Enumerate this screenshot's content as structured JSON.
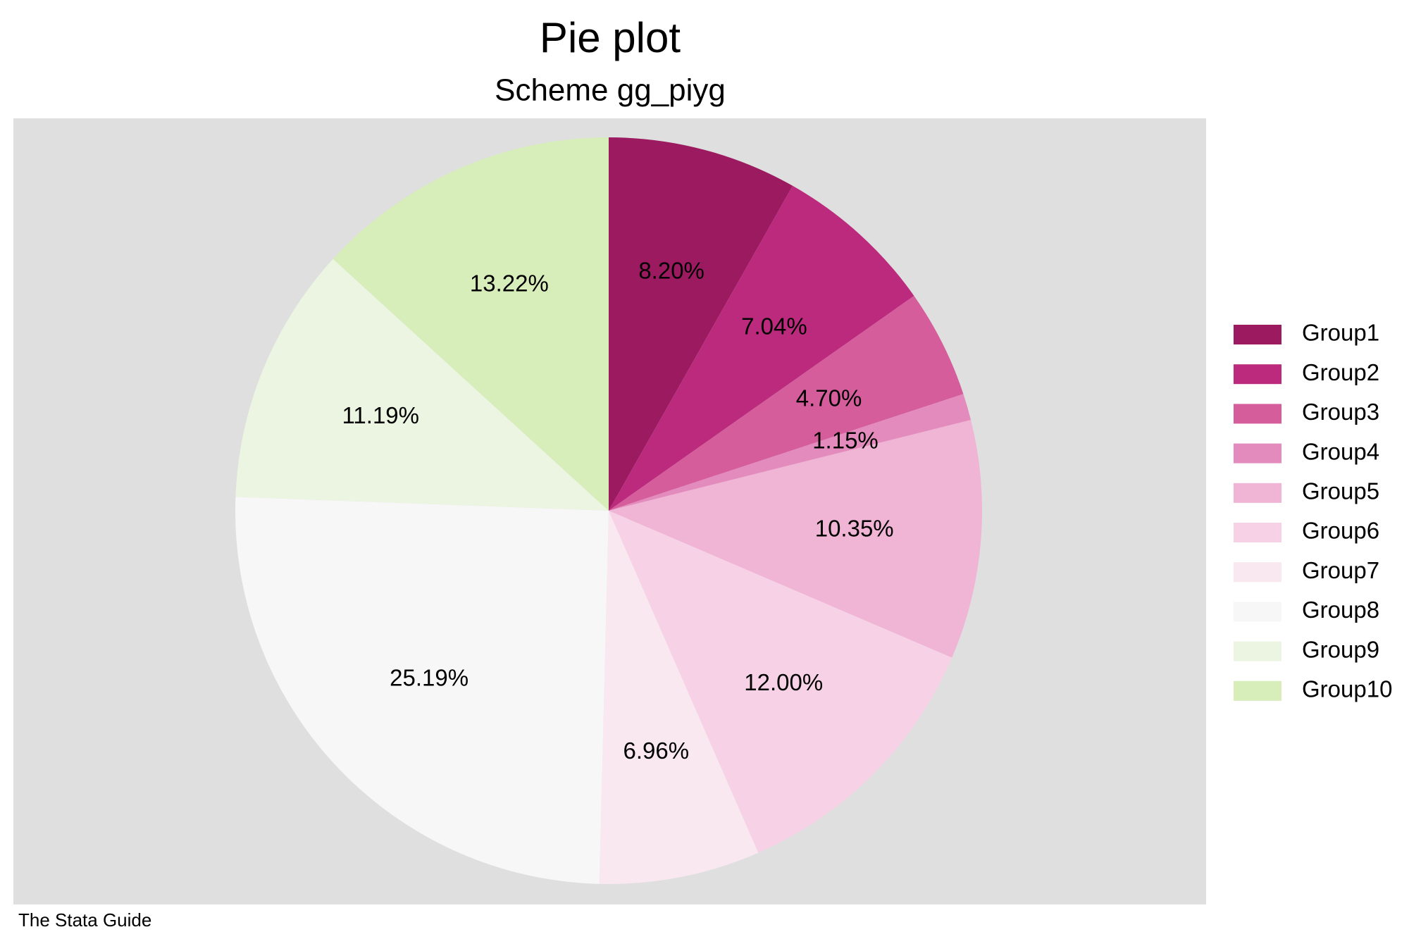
{
  "chart_data": {
    "type": "pie",
    "title": "Pie plot",
    "subtitle": "Scheme gg_piyg",
    "caption": "The Stata Guide",
    "categories": [
      "Group1",
      "Group2",
      "Group3",
      "Group4",
      "Group5",
      "Group6",
      "Group7",
      "Group8",
      "Group9",
      "Group10"
    ],
    "values": [
      8.2,
      7.04,
      4.7,
      1.15,
      10.35,
      12.0,
      6.96,
      25.19,
      11.19,
      13.22
    ],
    "value_labels": [
      "8.20%",
      "7.04%",
      "4.70%",
      "1.15%",
      "10.35%",
      "12.00%",
      "6.96%",
      "25.19%",
      "11.19%",
      "13.22%"
    ],
    "colors": [
      "#9b1a60",
      "#bb2a7d",
      "#d55d9c",
      "#e38bbd",
      "#f0b4d5",
      "#f7d2e6",
      "#f9e8f0",
      "#f7f7f7",
      "#ebf5e1",
      "#d7edba"
    ],
    "legend": "right"
  }
}
